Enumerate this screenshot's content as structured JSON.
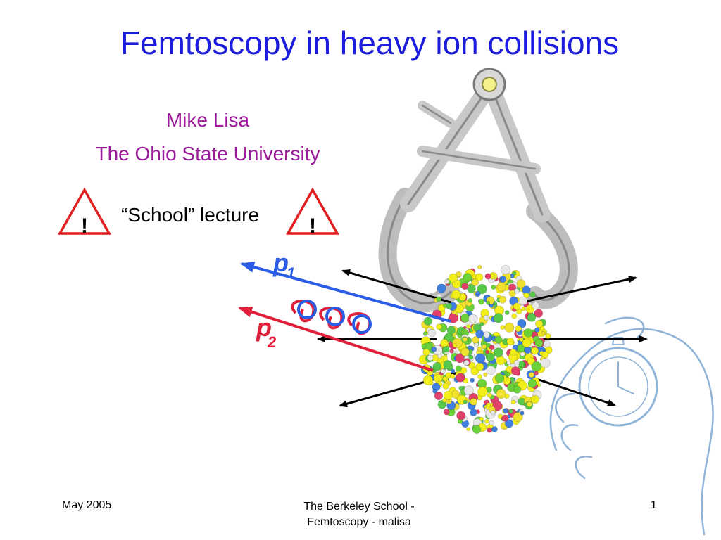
{
  "slide": {
    "title": "Femtoscopy in heavy ion collisions",
    "author": "Mike Lisa",
    "affiliation": "The Ohio State University",
    "lecture_label": "“School” lecture",
    "warning_symbol": "!",
    "particle_labels": {
      "p1_letter": "p",
      "p1_subscript": "1",
      "p2_letter": "p",
      "p2_subscript": "2"
    }
  },
  "footer": {
    "date": "May 2005",
    "center_line1": "The Berkeley School -",
    "center_line2": "Femtoscopy - malisa",
    "page_number": "1"
  },
  "icons": [
    "warning-triangle-icon",
    "caliper-icon",
    "stopwatch-hand-icon",
    "collision-fireball-icon"
  ],
  "colors": {
    "title": "#1c1cdc",
    "author": "#9a1a9a",
    "p1": "#2b5ce6",
    "p2": "#e0203a",
    "warning": "#e02020"
  }
}
